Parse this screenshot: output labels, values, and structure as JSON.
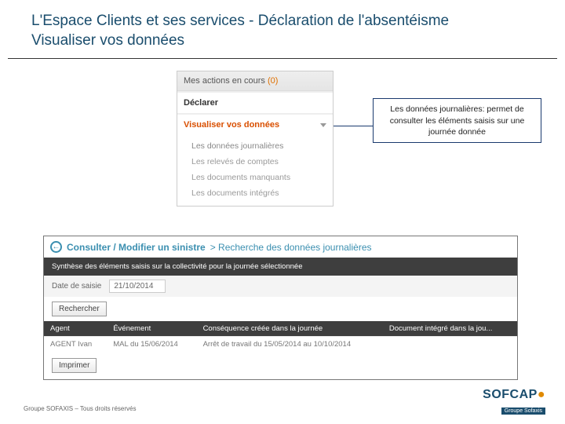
{
  "slide": {
    "title_line1": "L'Espace Clients et ses services - Déclaration de l'absentéisme",
    "title_line2": "Visualiser vos données"
  },
  "menu": {
    "header_label": "Mes actions en cours",
    "header_count": "(0)",
    "declarer": "Déclarer",
    "visualiser": "Visualiser vos données",
    "items": [
      "Les données journalières",
      "Les relevés de comptes",
      "Les documents manquants",
      "Les documents intégrés"
    ]
  },
  "callout": {
    "text": "Les données journalières:  permet de consulter les éléments saisis sur une journée donnée"
  },
  "search": {
    "back_glyph": "←",
    "title": "Consulter / Modifier un sinistre",
    "subtitle": "> Recherche des données journalières",
    "filter_label": "Synthèse des éléments saisis sur la collectivité pour la journée sélectionnée",
    "date_label": "Date de saisie",
    "date_value": "21/10/2014",
    "search_btn": "Rechercher",
    "columns": [
      "Agent",
      "Événement",
      "Conséquence créée dans la journée",
      "Document intégré dans la jou..."
    ],
    "rows": [
      [
        "AGENT Ivan",
        "MAL du 15/06/2014",
        "Arrêt de travail du 15/05/2014 au 10/10/2014",
        ""
      ]
    ],
    "print_btn": "Imprimer"
  },
  "footer": {
    "copyright": "Groupe SOFAXIS – Tous droits réservés"
  },
  "logo": {
    "main": "SOFCAP",
    "sub": "Groupe Sofaxis"
  },
  "colors": {
    "title": "#1a4d6d",
    "accent": "#d94f00",
    "callout_border": "#1a3a6e",
    "panel_header": "#3b8fb0",
    "dark_bar": "#3e3e3e"
  }
}
